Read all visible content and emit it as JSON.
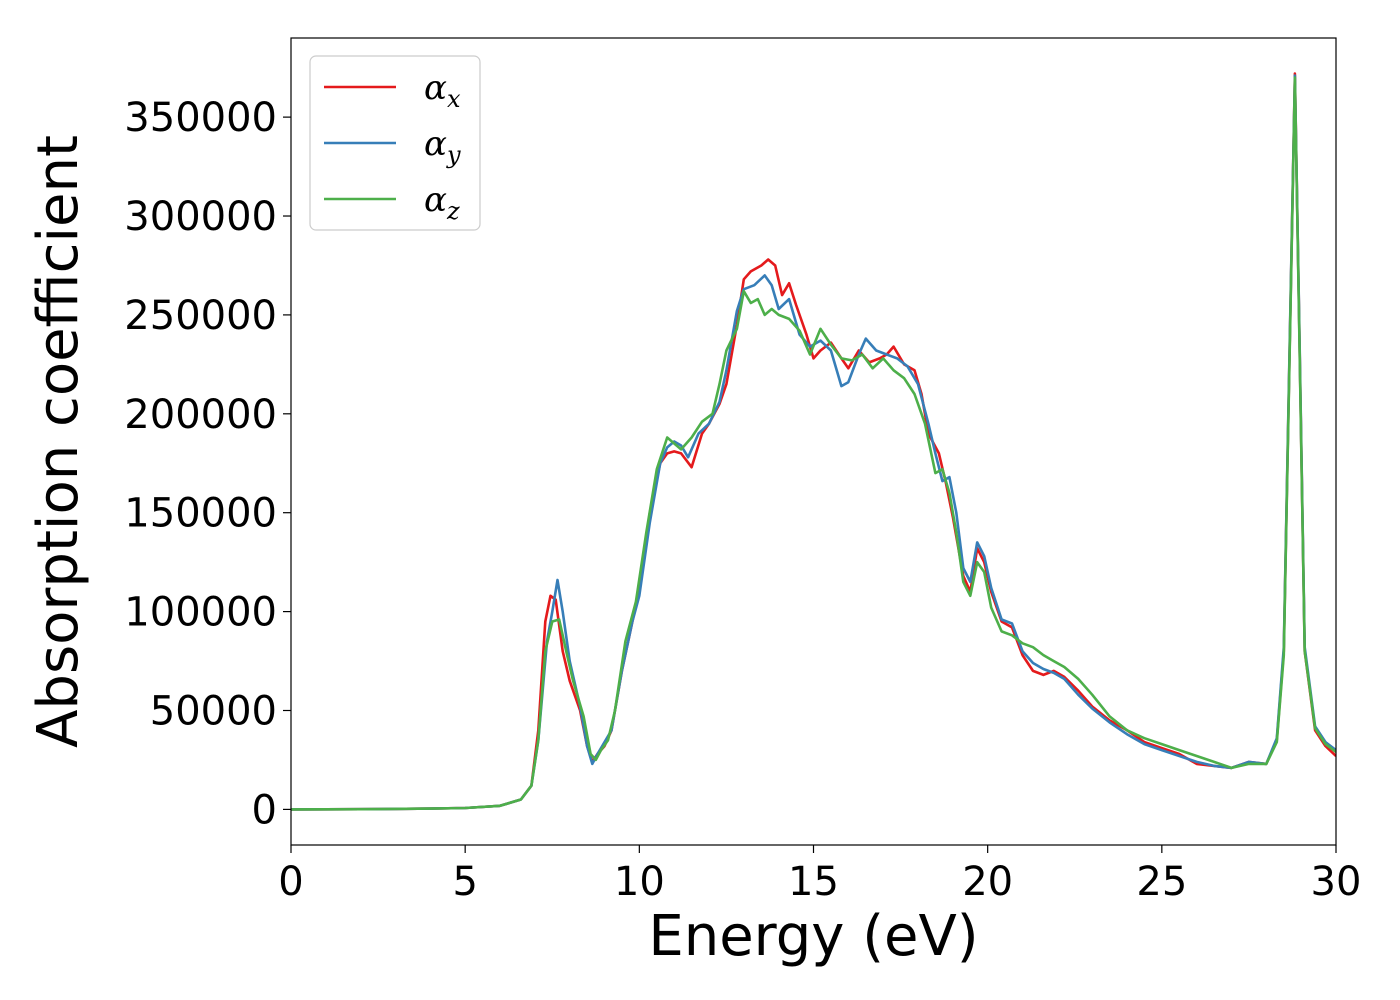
{
  "chart_data": {
    "type": "line",
    "xlabel": "Energy (eV)",
    "ylabel": "Absorption coefficient",
    "xlim": [
      0,
      30
    ],
    "ylim": [
      -18000,
      390000
    ],
    "xticks": [
      0,
      5,
      10,
      15,
      20,
      25,
      30
    ],
    "yticks": [
      0,
      50000,
      100000,
      150000,
      200000,
      250000,
      300000,
      350000
    ],
    "xtick_labels": [
      "0",
      "5",
      "10",
      "15",
      "20",
      "25",
      "30"
    ],
    "ytick_labels": [
      "0",
      "50000",
      "100000",
      "150000",
      "200000",
      "250000",
      "300000",
      "350000"
    ],
    "grid": false,
    "legend_position": "top-left",
    "series": [
      {
        "name": "αx",
        "symbol": "α",
        "subscript": "x",
        "color": "#e41a1c",
        "points": [
          [
            0,
            0
          ],
          [
            2,
            100
          ],
          [
            4,
            400
          ],
          [
            5,
            700
          ],
          [
            6,
            1800
          ],
          [
            6.6,
            5000
          ],
          [
            6.9,
            12000
          ],
          [
            7.1,
            40000
          ],
          [
            7.3,
            95000
          ],
          [
            7.45,
            108000
          ],
          [
            7.6,
            106000
          ],
          [
            7.8,
            80000
          ],
          [
            8.0,
            65000
          ],
          [
            8.3,
            50000
          ],
          [
            8.5,
            32000
          ],
          [
            8.65,
            24000
          ],
          [
            8.8,
            28000
          ],
          [
            9.0,
            32000
          ],
          [
            9.2,
            40000
          ],
          [
            9.5,
            70000
          ],
          [
            9.8,
            95000
          ],
          [
            10.0,
            112000
          ],
          [
            10.3,
            150000
          ],
          [
            10.6,
            175000
          ],
          [
            10.8,
            180000
          ],
          [
            11.0,
            181000
          ],
          [
            11.2,
            180000
          ],
          [
            11.5,
            173000
          ],
          [
            11.8,
            190000
          ],
          [
            12.0,
            195000
          ],
          [
            12.3,
            205000
          ],
          [
            12.5,
            215000
          ],
          [
            12.8,
            245000
          ],
          [
            13.0,
            268000
          ],
          [
            13.2,
            272000
          ],
          [
            13.5,
            275000
          ],
          [
            13.7,
            278000
          ],
          [
            13.9,
            275000
          ],
          [
            14.1,
            260000
          ],
          [
            14.3,
            266000
          ],
          [
            14.5,
            255000
          ],
          [
            14.8,
            240000
          ],
          [
            15.0,
            228000
          ],
          [
            15.2,
            232000
          ],
          [
            15.5,
            236000
          ],
          [
            15.8,
            228000
          ],
          [
            16.0,
            223000
          ],
          [
            16.3,
            232000
          ],
          [
            16.6,
            226000
          ],
          [
            16.9,
            228000
          ],
          [
            17.1,
            230000
          ],
          [
            17.3,
            234000
          ],
          [
            17.6,
            225000
          ],
          [
            17.9,
            222000
          ],
          [
            18.1,
            210000
          ],
          [
            18.3,
            190000
          ],
          [
            18.6,
            180000
          ],
          [
            18.8,
            165000
          ],
          [
            19.0,
            148000
          ],
          [
            19.3,
            118000
          ],
          [
            19.5,
            110000
          ],
          [
            19.7,
            132000
          ],
          [
            19.9,
            125000
          ],
          [
            20.1,
            110000
          ],
          [
            20.4,
            95000
          ],
          [
            20.7,
            92000
          ],
          [
            21.0,
            78000
          ],
          [
            21.3,
            70000
          ],
          [
            21.6,
            68000
          ],
          [
            21.9,
            70000
          ],
          [
            22.2,
            67000
          ],
          [
            22.6,
            60000
          ],
          [
            23.0,
            52000
          ],
          [
            23.5,
            45000
          ],
          [
            24.0,
            40000
          ],
          [
            24.5,
            34000
          ],
          [
            25.0,
            31000
          ],
          [
            25.5,
            28000
          ],
          [
            26.0,
            23000
          ],
          [
            26.5,
            22000
          ],
          [
            27.0,
            21000
          ],
          [
            27.5,
            24000
          ],
          [
            28.0,
            23000
          ],
          [
            28.3,
            35000
          ],
          [
            28.5,
            80000
          ],
          [
            28.7,
            260000
          ],
          [
            28.82,
            372000
          ],
          [
            28.95,
            240000
          ],
          [
            29.1,
            80000
          ],
          [
            29.4,
            40000
          ],
          [
            29.7,
            32000
          ],
          [
            30.0,
            27000
          ]
        ]
      },
      {
        "name": "αy",
        "symbol": "α",
        "subscript": "y",
        "color": "#377eb8",
        "points": [
          [
            0,
            0
          ],
          [
            2,
            100
          ],
          [
            4,
            400
          ],
          [
            5,
            700
          ],
          [
            6,
            1800
          ],
          [
            6.6,
            5000
          ],
          [
            6.9,
            12000
          ],
          [
            7.1,
            35000
          ],
          [
            7.35,
            85000
          ],
          [
            7.5,
            100000
          ],
          [
            7.65,
            116000
          ],
          [
            7.8,
            100000
          ],
          [
            8.0,
            75000
          ],
          [
            8.3,
            52000
          ],
          [
            8.5,
            32000
          ],
          [
            8.65,
            23000
          ],
          [
            8.8,
            28000
          ],
          [
            9.0,
            34000
          ],
          [
            9.2,
            40000
          ],
          [
            9.5,
            70000
          ],
          [
            9.8,
            95000
          ],
          [
            10.0,
            108000
          ],
          [
            10.3,
            145000
          ],
          [
            10.6,
            175000
          ],
          [
            10.8,
            183000
          ],
          [
            11.0,
            186000
          ],
          [
            11.2,
            184000
          ],
          [
            11.4,
            178000
          ],
          [
            11.7,
            190000
          ],
          [
            12.0,
            195000
          ],
          [
            12.3,
            206000
          ],
          [
            12.5,
            222000
          ],
          [
            12.8,
            252000
          ],
          [
            13.0,
            263000
          ],
          [
            13.3,
            265000
          ],
          [
            13.6,
            270000
          ],
          [
            13.8,
            265000
          ],
          [
            14.0,
            253000
          ],
          [
            14.3,
            258000
          ],
          [
            14.6,
            240000
          ],
          [
            14.9,
            234000
          ],
          [
            15.2,
            237000
          ],
          [
            15.5,
            232000
          ],
          [
            15.8,
            214000
          ],
          [
            16.0,
            216000
          ],
          [
            16.3,
            230000
          ],
          [
            16.5,
            238000
          ],
          [
            16.8,
            232000
          ],
          [
            17.1,
            230000
          ],
          [
            17.4,
            228000
          ],
          [
            17.7,
            224000
          ],
          [
            18.0,
            215000
          ],
          [
            18.3,
            195000
          ],
          [
            18.5,
            180000
          ],
          [
            18.7,
            166000
          ],
          [
            18.9,
            168000
          ],
          [
            19.1,
            150000
          ],
          [
            19.3,
            122000
          ],
          [
            19.5,
            115000
          ],
          [
            19.7,
            135000
          ],
          [
            19.9,
            128000
          ],
          [
            20.1,
            112000
          ],
          [
            20.4,
            96000
          ],
          [
            20.7,
            94000
          ],
          [
            21.0,
            80000
          ],
          [
            21.3,
            74000
          ],
          [
            21.6,
            71000
          ],
          [
            21.9,
            69000
          ],
          [
            22.2,
            66000
          ],
          [
            22.6,
            58000
          ],
          [
            23.0,
            51000
          ],
          [
            23.5,
            44000
          ],
          [
            24.0,
            38000
          ],
          [
            24.5,
            33000
          ],
          [
            25.0,
            30000
          ],
          [
            25.5,
            27000
          ],
          [
            26.0,
            24000
          ],
          [
            26.5,
            22000
          ],
          [
            27.0,
            21000
          ],
          [
            27.5,
            24000
          ],
          [
            28.0,
            23000
          ],
          [
            28.3,
            36000
          ],
          [
            28.5,
            82000
          ],
          [
            28.7,
            262000
          ],
          [
            28.82,
            371000
          ],
          [
            28.95,
            242000
          ],
          [
            29.1,
            82000
          ],
          [
            29.4,
            42000
          ],
          [
            29.7,
            34000
          ],
          [
            30.0,
            30000
          ]
        ]
      },
      {
        "name": "αz",
        "symbol": "α",
        "subscript": "z",
        "color": "#4daf4a",
        "points": [
          [
            0,
            0
          ],
          [
            2,
            100
          ],
          [
            4,
            400
          ],
          [
            5,
            700
          ],
          [
            6,
            1800
          ],
          [
            6.6,
            5000
          ],
          [
            6.9,
            12000
          ],
          [
            7.1,
            35000
          ],
          [
            7.3,
            80000
          ],
          [
            7.5,
            95000
          ],
          [
            7.7,
            96000
          ],
          [
            7.9,
            80000
          ],
          [
            8.1,
            65000
          ],
          [
            8.4,
            47000
          ],
          [
            8.6,
            28000
          ],
          [
            8.75,
            25000
          ],
          [
            8.9,
            30000
          ],
          [
            9.1,
            35000
          ],
          [
            9.3,
            50000
          ],
          [
            9.6,
            85000
          ],
          [
            9.9,
            105000
          ],
          [
            10.2,
            140000
          ],
          [
            10.5,
            172000
          ],
          [
            10.8,
            188000
          ],
          [
            11.0,
            185000
          ],
          [
            11.2,
            182000
          ],
          [
            11.5,
            188000
          ],
          [
            11.8,
            196000
          ],
          [
            12.1,
            200000
          ],
          [
            12.3,
            215000
          ],
          [
            12.5,
            232000
          ],
          [
            12.8,
            243000
          ],
          [
            13.0,
            262000
          ],
          [
            13.2,
            256000
          ],
          [
            13.4,
            258000
          ],
          [
            13.6,
            250000
          ],
          [
            13.8,
            253000
          ],
          [
            14.0,
            250000
          ],
          [
            14.3,
            248000
          ],
          [
            14.6,
            242000
          ],
          [
            14.9,
            230000
          ],
          [
            15.2,
            243000
          ],
          [
            15.5,
            235000
          ],
          [
            15.8,
            228000
          ],
          [
            16.1,
            227000
          ],
          [
            16.4,
            230000
          ],
          [
            16.7,
            223000
          ],
          [
            17.0,
            228000
          ],
          [
            17.3,
            222000
          ],
          [
            17.6,
            218000
          ],
          [
            17.9,
            210000
          ],
          [
            18.2,
            195000
          ],
          [
            18.5,
            170000
          ],
          [
            18.7,
            172000
          ],
          [
            18.9,
            160000
          ],
          [
            19.1,
            140000
          ],
          [
            19.3,
            115000
          ],
          [
            19.5,
            108000
          ],
          [
            19.7,
            125000
          ],
          [
            19.9,
            120000
          ],
          [
            20.1,
            102000
          ],
          [
            20.4,
            90000
          ],
          [
            20.7,
            88000
          ],
          [
            21.0,
            84000
          ],
          [
            21.3,
            82000
          ],
          [
            21.6,
            78000
          ],
          [
            21.9,
            75000
          ],
          [
            22.2,
            72000
          ],
          [
            22.6,
            66000
          ],
          [
            23.0,
            58000
          ],
          [
            23.5,
            47000
          ],
          [
            24.0,
            40000
          ],
          [
            24.5,
            36000
          ],
          [
            25.0,
            33000
          ],
          [
            25.5,
            30000
          ],
          [
            26.0,
            27000
          ],
          [
            26.5,
            24000
          ],
          [
            27.0,
            21000
          ],
          [
            27.5,
            23000
          ],
          [
            28.0,
            23000
          ],
          [
            28.3,
            34000
          ],
          [
            28.5,
            78000
          ],
          [
            28.7,
            258000
          ],
          [
            28.82,
            370000
          ],
          [
            28.95,
            238000
          ],
          [
            29.1,
            80000
          ],
          [
            29.4,
            41000
          ],
          [
            29.7,
            33000
          ],
          [
            30.0,
            29000
          ]
        ]
      }
    ]
  }
}
